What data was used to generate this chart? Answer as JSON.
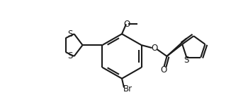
{
  "bg_color": "#ffffff",
  "line_color": "#1a1a1a",
  "line_width": 1.5,
  "font_size": 8.5,
  "figsize": [
    3.5,
    1.55
  ],
  "dpi": 100,
  "xlim": [
    0,
    3.5
  ],
  "ylim": [
    0,
    1.55
  ]
}
